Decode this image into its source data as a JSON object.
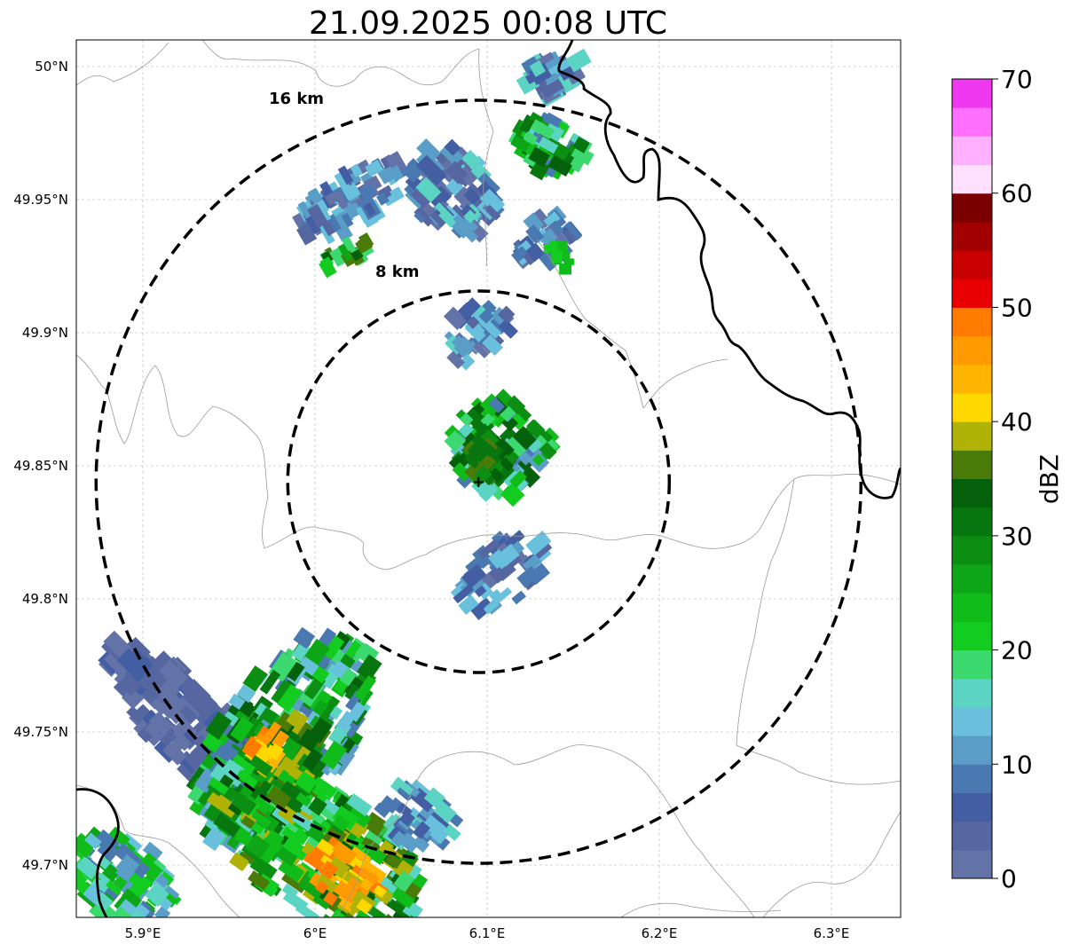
{
  "title": "21.09.2025 00:08 UTC",
  "map": {
    "lon_range": [
      5.86,
      6.34
    ],
    "lat_range": [
      49.68,
      50.01
    ],
    "lon_ticks": [
      5.9,
      6.0,
      6.1,
      6.2,
      6.3
    ],
    "lon_tick_labels": [
      "5.9°E",
      "6°E",
      "6.1°E",
      "6.2°E",
      "6.3°E"
    ],
    "lat_ticks": [
      50.0,
      49.95,
      49.9,
      49.85,
      49.8,
      49.75,
      49.7
    ],
    "lat_tick_labels": [
      "50°N",
      "49.95°N",
      "49.9°N",
      "49.85°N",
      "49.8°N",
      "49.75°N",
      "49.7°N"
    ],
    "grid": true,
    "radar_site": {
      "lon": 6.095,
      "lat": 49.844,
      "marker": "+"
    },
    "range_rings": [
      {
        "radius_km": 8,
        "label": "8 km"
      },
      {
        "radius_km": 16,
        "label": "16 km"
      }
    ]
  },
  "colorbar": {
    "label": "dBZ",
    "vmin": 0,
    "vmax": 70,
    "tick_values": [
      0,
      10,
      20,
      30,
      40,
      50,
      60,
      70
    ],
    "tick_labels": [
      "0",
      "10",
      "20",
      "30",
      "40",
      "50",
      "60",
      "70"
    ],
    "colors": [
      "#6373a8",
      "#5566a0",
      "#445ea3",
      "#4a78b0",
      "#5a9ec8",
      "#68c0dc",
      "#5cd4c4",
      "#3cd870",
      "#12cc20",
      "#10bc1a",
      "#0da616",
      "#0c8e13",
      "#08760f",
      "#05600b",
      "#4a7a08",
      "#b0b208",
      "#ffd800",
      "#ffb400",
      "#ff9a00",
      "#ff7c00",
      "#e80000",
      "#c80000",
      "#a00000",
      "#7a0000",
      "#ffe0ff",
      "#ffb0ff",
      "#ff70ff",
      "#f038f0"
    ]
  },
  "legend_colors": {
    "national_border": "#000000",
    "regional_border": "#9a9a9a",
    "range_ring": "#000000"
  }
}
